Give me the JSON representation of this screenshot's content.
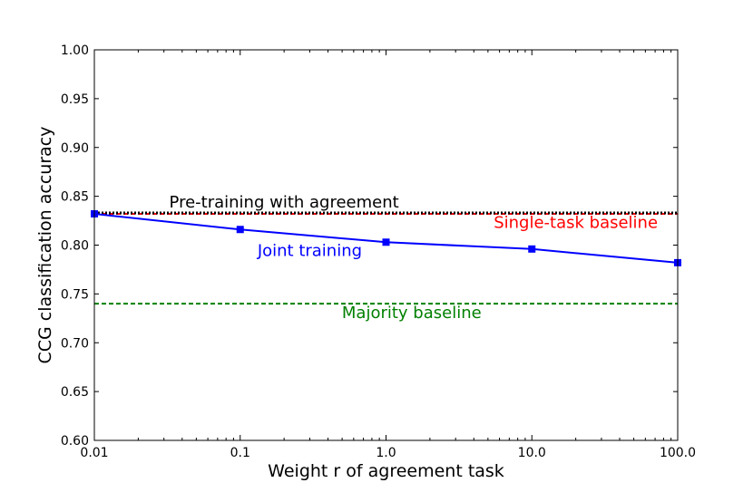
{
  "chart_data": {
    "type": "line",
    "title": "",
    "xlabel": "Weight r of agreement task",
    "ylabel": "CCG classification accuracy",
    "x_scale": "log",
    "xlim": [
      0.01,
      100.0
    ],
    "ylim": [
      0.6,
      1.0
    ],
    "x_ticks": [
      0.01,
      0.1,
      1.0,
      10.0,
      100.0
    ],
    "x_tick_labels": [
      "0.01",
      "0.1",
      "1.0",
      "10.0",
      "100.0"
    ],
    "y_ticks": [
      0.6,
      0.65,
      0.7,
      0.75,
      0.8,
      0.85,
      0.9,
      0.95,
      1.0
    ],
    "y_tick_labels": [
      "0.60",
      "0.65",
      "0.70",
      "0.75",
      "0.80",
      "0.85",
      "0.90",
      "0.95",
      "1.00"
    ],
    "grid": false,
    "series": [
      {
        "name": "Joint training",
        "style": "solid",
        "marker": "square",
        "color": "#0000ff",
        "x": [
          0.01,
          0.1,
          1.0,
          10.0,
          100.0
        ],
        "y": [
          0.832,
          0.816,
          0.803,
          0.796,
          0.782
        ]
      },
      {
        "name": "Pre-training with agreement",
        "style": "dotted",
        "color": "#000000",
        "x": [
          0.01,
          100.0
        ],
        "y": [
          0.833,
          0.833
        ]
      },
      {
        "name": "Single-task baseline",
        "style": "dashed",
        "color": "#ff0000",
        "x": [
          0.01,
          100.0
        ],
        "y": [
          0.832,
          0.832
        ]
      },
      {
        "name": "Majority baseline",
        "style": "dashed",
        "color": "#008000",
        "x": [
          0.01,
          100.0
        ],
        "y": [
          0.74,
          0.74
        ]
      }
    ],
    "annotations": [
      {
        "text": "Pre-training with agreement",
        "color": "#000000",
        "x": 0.2,
        "y": 0.8385
      },
      {
        "text": "Single-task baseline",
        "color": "#ff0000",
        "x": 20.0,
        "y": 0.8175
      },
      {
        "text": "Joint training",
        "color": "#0000ff",
        "x": 0.3,
        "y": 0.789
      },
      {
        "text": "Majority baseline",
        "color": "#008000",
        "x": 1.5,
        "y": 0.7255
      }
    ]
  }
}
